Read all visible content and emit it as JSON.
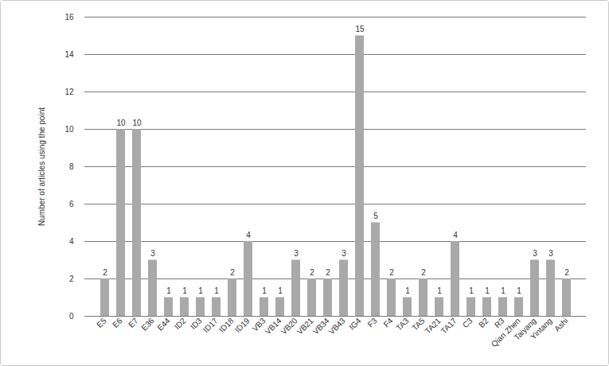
{
  "chart_data": {
    "type": "bar",
    "y_label": "Number of articles using the point",
    "categories": [
      "E5",
      "E6",
      "E7",
      "E36",
      "E44",
      "ID2",
      "ID3",
      "ID17",
      "ID18",
      "ID19",
      "VB3",
      "VB14",
      "VB20",
      "VB21",
      "VB34",
      "VB43",
      "IG4",
      "F3",
      "F4",
      "TA3",
      "TA5",
      "TA21",
      "TA17",
      "C3",
      "B2",
      "R3",
      "Qian Zhen",
      "Taiyang",
      "Yintang",
      "Ashi"
    ],
    "values": [
      2,
      10,
      10,
      3,
      1,
      1,
      1,
      1,
      2,
      4,
      1,
      1,
      3,
      2,
      2,
      3,
      15,
      5,
      2,
      1,
      2,
      1,
      4,
      1,
      1,
      1,
      1,
      3,
      3,
      2
    ],
    "color": "#a9a9a9",
    "ylim": [
      0,
      16
    ],
    "yticks": [
      0,
      2,
      4,
      6,
      8,
      10,
      12,
      14,
      16
    ],
    "grid": true,
    "data_labels": true
  }
}
